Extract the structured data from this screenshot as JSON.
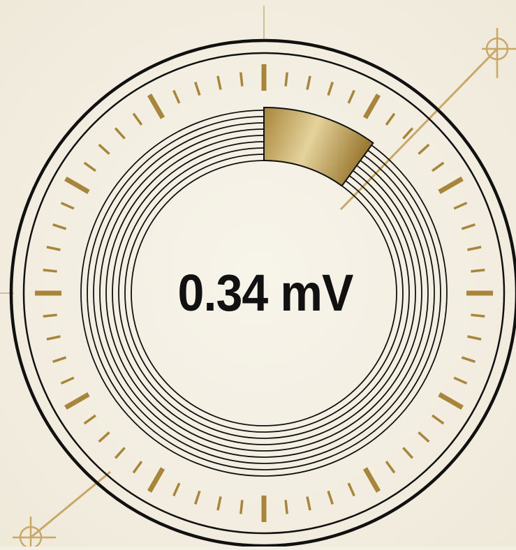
{
  "gauge": {
    "value_text": "0.34 mV",
    "level_fraction": 0.1,
    "colors": {
      "background": "#f3efe4",
      "ink": "#111111",
      "gold_dark": "#a8853a",
      "gold_light": "#e4d39c",
      "guide_line": "#c9a766"
    },
    "icons": [
      "crosshair-icon-top-right",
      "crosshair-icon-bottom-left"
    ]
  }
}
